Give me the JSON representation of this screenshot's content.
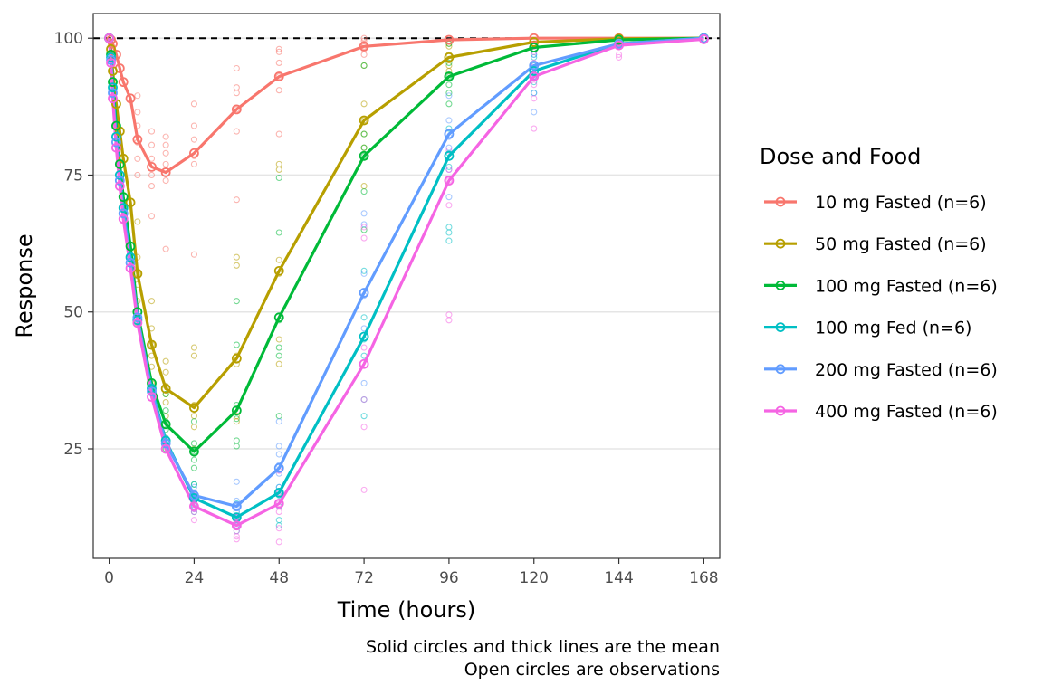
{
  "chart_data": {
    "type": "line",
    "title": "",
    "xlabel": "Time (hours)",
    "ylabel": "Response",
    "xlim": [
      -4.5,
      172.5
    ],
    "ylim": [
      5,
      104.5
    ],
    "x_ticks": [
      0,
      24,
      48,
      72,
      96,
      120,
      144,
      168
    ],
    "x_tick_labels": [
      "0",
      "24",
      "48",
      "72",
      "96",
      "120",
      "144",
      "168"
    ],
    "y_ticks": [
      25,
      50,
      75,
      100
    ],
    "y_tick_labels": [
      "25",
      "50",
      "75",
      "100"
    ],
    "reference_line": {
      "y": 100,
      "style": "dashed"
    },
    "grid": "horizontal major lines",
    "legend": {
      "title": "Dose and Food",
      "position": "right"
    },
    "caption": [
      "Solid circles and thick lines are the mean",
      "Open circles are observations"
    ],
    "x": [
      0,
      0.5,
      1,
      2,
      3,
      4,
      6,
      8,
      12,
      16,
      24,
      36,
      48,
      72,
      96,
      120,
      144,
      168
    ],
    "series": [
      {
        "name": "10 mg Fasted (n=6)",
        "color": "#F8766D",
        "values": [
          100,
          99.7,
          99,
          97,
          94.5,
          92,
          89,
          81.5,
          76.5,
          75.5,
          79,
          87,
          93,
          98.5,
          99.7,
          100,
          100,
          100
        ]
      },
      {
        "name": "50 mg Fasted (n=6)",
        "color": "#B79F00",
        "values": [
          100,
          98,
          94,
          88,
          83,
          78,
          70,
          57,
          44,
          36,
          32.5,
          41.5,
          57.5,
          85,
          96.5,
          99.3,
          99.9,
          100
        ]
      },
      {
        "name": "100 mg Fasted (n=6)",
        "color": "#00BA38",
        "values": [
          100,
          97,
          92,
          84,
          77,
          71,
          62,
          50,
          37,
          29.5,
          24.5,
          32,
          49,
          78.5,
          93,
          98.3,
          99.7,
          100
        ]
      },
      {
        "name": "100 mg Fed (n=6)",
        "color": "#00BFC4",
        "values": [
          100,
          96.5,
          91,
          82,
          75,
          69,
          60,
          48.5,
          36,
          26.5,
          16,
          12.5,
          17,
          45.5,
          78.5,
          94,
          99,
          100
        ]
      },
      {
        "name": "200 mg Fasted (n=6)",
        "color": "#619CFF",
        "values": [
          100,
          96,
          90,
          81,
          74,
          68,
          59,
          49,
          35.5,
          26,
          16.5,
          14.5,
          21.5,
          53.5,
          82.5,
          95,
          99,
          100
        ]
      },
      {
        "name": "400 mg Fasted (n=6)",
        "color": "#F564E3",
        "values": [
          100,
          95.5,
          89,
          80,
          73,
          67,
          58,
          48,
          34.5,
          25,
          14.5,
          11,
          15,
          40.5,
          74,
          93,
          98.7,
          99.8
        ]
      }
    ],
    "observations": [
      {
        "series": 0,
        "x": 12,
        "y": [
          83,
          80.5,
          78,
          75,
          73,
          67.5
        ]
      },
      {
        "series": 0,
        "x": 16,
        "y": [
          82,
          80.5,
          79,
          77,
          74,
          61.5
        ]
      },
      {
        "series": 0,
        "x": 24,
        "y": [
          88,
          84,
          81.5,
          78.5,
          77,
          60.5
        ]
      },
      {
        "series": 0,
        "x": 36,
        "y": [
          94.5,
          91,
          90,
          87,
          83,
          70.5
        ]
      },
      {
        "series": 0,
        "x": 48,
        "y": [
          98,
          97.5,
          95.5,
          93,
          90.5,
          82.5
        ]
      },
      {
        "series": 0,
        "x": 72,
        "y": [
          100,
          99.5,
          99,
          98.5,
          98,
          97
        ]
      },
      {
        "series": 0,
        "x": 8,
        "y": [
          89.5,
          86.5,
          84,
          81,
          78,
          75
        ]
      },
      {
        "series": 1,
        "x": 8,
        "y": [
          66.5,
          60,
          57,
          55,
          52,
          48
        ]
      },
      {
        "series": 1,
        "x": 12,
        "y": [
          52,
          47,
          44,
          42,
          40,
          37
        ]
      },
      {
        "series": 1,
        "x": 16,
        "y": [
          41,
          39,
          36.5,
          35,
          33.5,
          31
        ]
      },
      {
        "series": 1,
        "x": 24,
        "y": [
          43.5,
          42,
          33,
          31,
          29,
          25
        ]
      },
      {
        "series": 1,
        "x": 36,
        "y": [
          60,
          58.5,
          42,
          40.5,
          31,
          30
        ]
      },
      {
        "series": 1,
        "x": 48,
        "y": [
          77,
          76,
          59.5,
          57,
          45,
          40.5
        ]
      },
      {
        "series": 1,
        "x": 72,
        "y": [
          95,
          88,
          85,
          82.5,
          80,
          73
        ]
      },
      {
        "series": 1,
        "x": 96,
        "y": [
          99,
          98.5,
          97,
          96,
          95,
          94
        ]
      },
      {
        "series": 2,
        "x": 16,
        "y": [
          35,
          32,
          30,
          28.5,
          27,
          25
        ]
      },
      {
        "series": 2,
        "x": 24,
        "y": [
          30,
          26,
          24.5,
          23,
          21.5,
          18.5
        ]
      },
      {
        "series": 2,
        "x": 36,
        "y": [
          52,
          44,
          33,
          30.5,
          26.5,
          25.5
        ]
      },
      {
        "series": 2,
        "x": 48,
        "y": [
          74.5,
          64.5,
          48.5,
          43.5,
          42,
          31
        ]
      },
      {
        "series": 2,
        "x": 72,
        "y": [
          95,
          82.5,
          80,
          78.5,
          72,
          65
        ]
      },
      {
        "series": 2,
        "x": 96,
        "y": [
          99,
          95.5,
          93,
          91.5,
          90,
          88
        ]
      },
      {
        "series": 3,
        "x": 24,
        "y": [
          18.5,
          17,
          16,
          15,
          14.5,
          13.5
        ]
      },
      {
        "series": 3,
        "x": 36,
        "y": [
          15,
          13.5,
          12.5,
          12,
          11,
          10
        ]
      },
      {
        "series": 3,
        "x": 48,
        "y": [
          18,
          17,
          16.5,
          14.5,
          12,
          11
        ]
      },
      {
        "series": 3,
        "x": 72,
        "y": [
          57.5,
          49,
          45,
          42,
          34,
          31
        ]
      },
      {
        "series": 3,
        "x": 96,
        "y": [
          83.5,
          79,
          76.5,
          65.5,
          64.5,
          63
        ]
      },
      {
        "series": 3,
        "x": 120,
        "y": [
          97,
          96.5,
          95,
          93,
          92,
          90
        ]
      },
      {
        "series": 4,
        "x": 24,
        "y": [
          18,
          17,
          16.5,
          16,
          15,
          14
        ]
      },
      {
        "series": 4,
        "x": 36,
        "y": [
          19,
          15.5,
          14.5,
          13.5,
          12.5,
          11
        ]
      },
      {
        "series": 4,
        "x": 48,
        "y": [
          30,
          25.5,
          24,
          22,
          20.5,
          18
        ]
      },
      {
        "series": 4,
        "x": 72,
        "y": [
          68,
          66,
          57,
          53,
          47,
          37
        ]
      },
      {
        "series": 4,
        "x": 96,
        "y": [
          89.5,
          85,
          82,
          80,
          76,
          71
        ]
      },
      {
        "series": 4,
        "x": 120,
        "y": [
          99,
          97,
          95,
          93,
          90,
          86.5
        ]
      },
      {
        "series": 5,
        "x": 24,
        "y": [
          16.5,
          15.5,
          15,
          14,
          13.5,
          12
        ]
      },
      {
        "series": 5,
        "x": 36,
        "y": [
          12.5,
          11.5,
          11,
          10,
          9,
          8.5
        ]
      },
      {
        "series": 5,
        "x": 48,
        "y": [
          21,
          17,
          15,
          13.5,
          10.5,
          8
        ]
      },
      {
        "series": 5,
        "x": 72,
        "y": [
          65.5,
          63.5,
          43.5,
          34,
          29,
          17.5
        ]
      },
      {
        "series": 5,
        "x": 96,
        "y": [
          79.5,
          76,
          74,
          69.5,
          49.5,
          48.5
        ]
      },
      {
        "series": 5,
        "x": 120,
        "y": [
          97.5,
          95.5,
          93,
          91.5,
          89,
          83.5
        ]
      },
      {
        "series": 5,
        "x": 144,
        "y": [
          100,
          99.5,
          99,
          98.5,
          97,
          96.5
        ]
      }
    ]
  }
}
